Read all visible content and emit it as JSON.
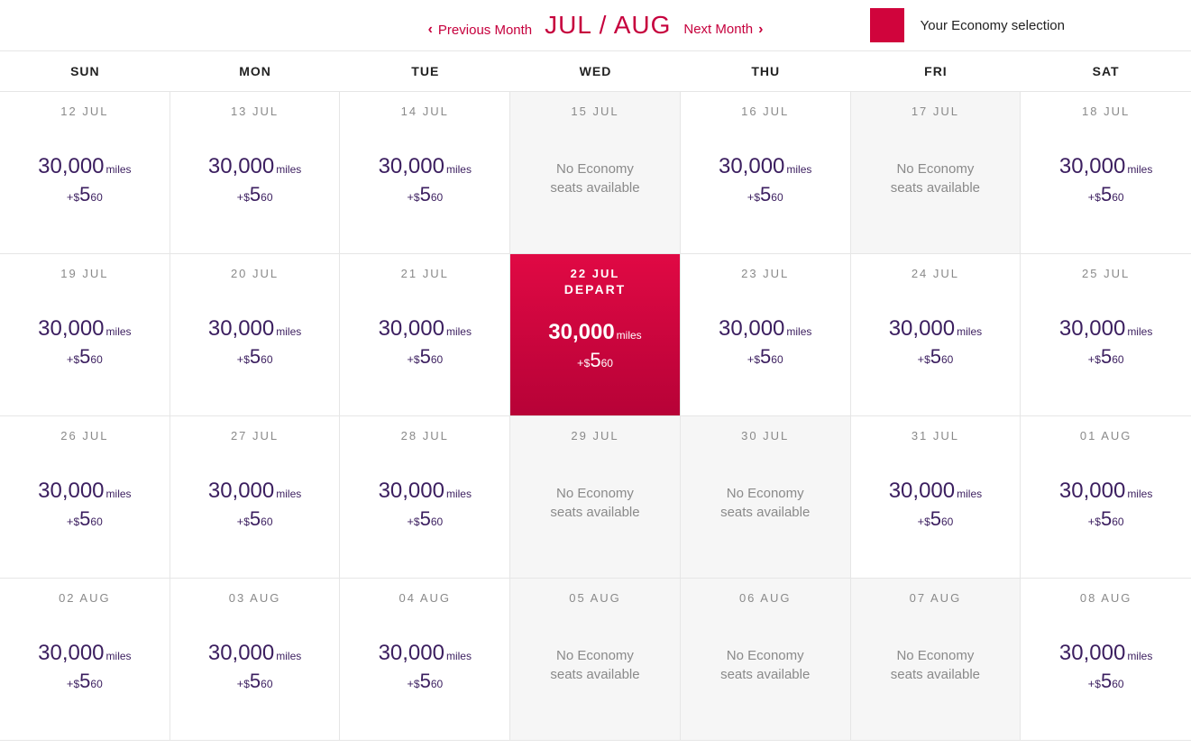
{
  "colors": {
    "brand": "#c6003d",
    "selected_bg_top": "#e00944",
    "selected_bg_bottom": "#b70237",
    "unavail_bg": "#f6f6f6",
    "border": "#e6e6e6",
    "price_text": "#3b1e5f",
    "muted_text": "#8a8a8a",
    "legend_swatch": "#d0043c"
  },
  "nav": {
    "prev_label": "Previous Month",
    "next_label": "Next Month",
    "month_title": "JUL / AUG"
  },
  "legend": {
    "label": "Your Economy selection"
  },
  "no_seats_text_l1": "No Economy",
  "no_seats_text_l2": "seats available",
  "miles_unit": "miles",
  "fee_prefix_plus": "+",
  "fee_currency": "$",
  "depart_label": "DEPART",
  "dow": [
    "SUN",
    "MON",
    "TUE",
    "WED",
    "THU",
    "FRI",
    "SAT"
  ],
  "cells": [
    {
      "date": "12 JUL",
      "miles": "30,000",
      "fee_dollars": "5",
      "fee_cents": "60",
      "available": true,
      "selected": false
    },
    {
      "date": "13 JUL",
      "miles": "30,000",
      "fee_dollars": "5",
      "fee_cents": "60",
      "available": true,
      "selected": false
    },
    {
      "date": "14 JUL",
      "miles": "30,000",
      "fee_dollars": "5",
      "fee_cents": "60",
      "available": true,
      "selected": false
    },
    {
      "date": "15 JUL",
      "available": false,
      "selected": false
    },
    {
      "date": "16 JUL",
      "miles": "30,000",
      "fee_dollars": "5",
      "fee_cents": "60",
      "available": true,
      "selected": false
    },
    {
      "date": "17 JUL",
      "available": false,
      "selected": false
    },
    {
      "date": "18 JUL",
      "miles": "30,000",
      "fee_dollars": "5",
      "fee_cents": "60",
      "available": true,
      "selected": false
    },
    {
      "date": "19 JUL",
      "miles": "30,000",
      "fee_dollars": "5",
      "fee_cents": "60",
      "available": true,
      "selected": false
    },
    {
      "date": "20 JUL",
      "miles": "30,000",
      "fee_dollars": "5",
      "fee_cents": "60",
      "available": true,
      "selected": false
    },
    {
      "date": "21 JUL",
      "miles": "30,000",
      "fee_dollars": "5",
      "fee_cents": "60",
      "available": true,
      "selected": false
    },
    {
      "date": "22 JUL",
      "miles": "30,000",
      "fee_dollars": "5",
      "fee_cents": "60",
      "available": true,
      "selected": true
    },
    {
      "date": "23 JUL",
      "miles": "30,000",
      "fee_dollars": "5",
      "fee_cents": "60",
      "available": true,
      "selected": false
    },
    {
      "date": "24 JUL",
      "miles": "30,000",
      "fee_dollars": "5",
      "fee_cents": "60",
      "available": true,
      "selected": false
    },
    {
      "date": "25 JUL",
      "miles": "30,000",
      "fee_dollars": "5",
      "fee_cents": "60",
      "available": true,
      "selected": false
    },
    {
      "date": "26 JUL",
      "miles": "30,000",
      "fee_dollars": "5",
      "fee_cents": "60",
      "available": true,
      "selected": false
    },
    {
      "date": "27 JUL",
      "miles": "30,000",
      "fee_dollars": "5",
      "fee_cents": "60",
      "available": true,
      "selected": false
    },
    {
      "date": "28 JUL",
      "miles": "30,000",
      "fee_dollars": "5",
      "fee_cents": "60",
      "available": true,
      "selected": false
    },
    {
      "date": "29 JUL",
      "available": false,
      "selected": false
    },
    {
      "date": "30 JUL",
      "available": false,
      "selected": false
    },
    {
      "date": "31 JUL",
      "miles": "30,000",
      "fee_dollars": "5",
      "fee_cents": "60",
      "available": true,
      "selected": false
    },
    {
      "date": "01 AUG",
      "miles": "30,000",
      "fee_dollars": "5",
      "fee_cents": "60",
      "available": true,
      "selected": false
    },
    {
      "date": "02 AUG",
      "miles": "30,000",
      "fee_dollars": "5",
      "fee_cents": "60",
      "available": true,
      "selected": false
    },
    {
      "date": "03 AUG",
      "miles": "30,000",
      "fee_dollars": "5",
      "fee_cents": "60",
      "available": true,
      "selected": false
    },
    {
      "date": "04 AUG",
      "miles": "30,000",
      "fee_dollars": "5",
      "fee_cents": "60",
      "available": true,
      "selected": false
    },
    {
      "date": "05 AUG",
      "available": false,
      "selected": false
    },
    {
      "date": "06 AUG",
      "available": false,
      "selected": false
    },
    {
      "date": "07 AUG",
      "available": false,
      "selected": false
    },
    {
      "date": "08 AUG",
      "miles": "30,000",
      "fee_dollars": "5",
      "fee_cents": "60",
      "available": true,
      "selected": false
    }
  ]
}
